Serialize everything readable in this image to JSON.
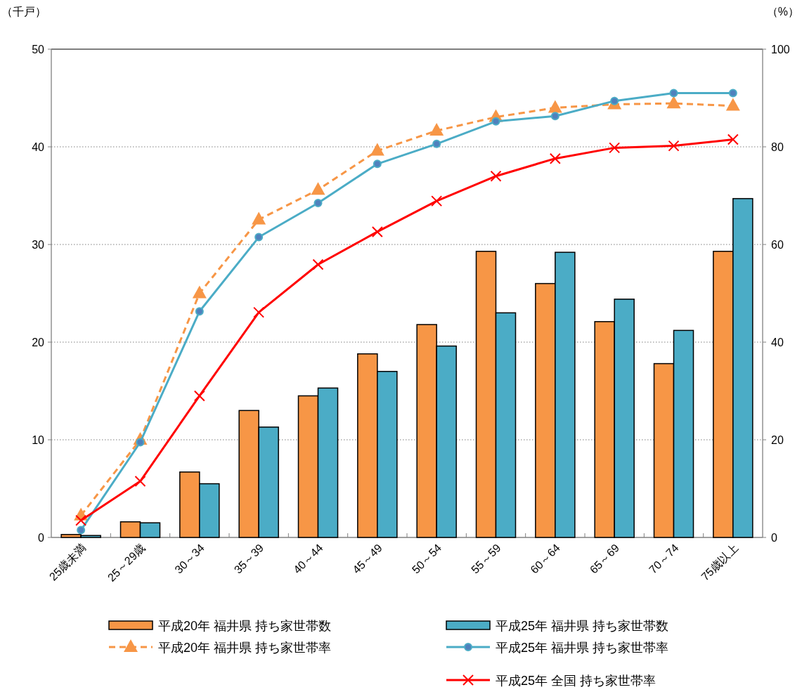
{
  "chart_data": {
    "type": "bar",
    "categories": [
      "25歳未満",
      "25～29歳",
      "30～34",
      "35～39",
      "40～44",
      "45～49",
      "50～54",
      "55～59",
      "60～64",
      "65～69",
      "70～74",
      "75歳以上"
    ],
    "ylabel": "（千戸）",
    "y2label": "（%）",
    "ylim": [
      0,
      50
    ],
    "yticks": [
      0,
      10,
      20,
      30,
      40,
      50
    ],
    "y2lim": [
      0,
      100
    ],
    "y2ticks": [
      0,
      20,
      40,
      60,
      80,
      100
    ],
    "grid": "y",
    "legend": "bottom",
    "series": [
      {
        "name": "平成20年 福井県 持ち家世帯数",
        "color": "#f79646",
        "values": [
          0.3,
          1.6,
          6.7,
          13.0,
          14.5,
          18.8,
          21.8,
          29.3,
          26.0,
          22.1,
          17.8,
          29.3
        ]
      },
      {
        "name": "平成25年 福井県 持ち家世帯数",
        "color": "#4bacc6",
        "values": [
          0.2,
          1.5,
          5.5,
          11.3,
          15.3,
          17.0,
          19.6,
          23.0,
          29.2,
          24.4,
          21.2,
          34.7
        ]
      },
      {
        "name": "平成20年 福井県 持ち家世帯率",
        "type": "line",
        "axis": "y2",
        "color": "#f79646",
        "marker": "triangle",
        "line_style": "dashed",
        "values": [
          4.5,
          20.0,
          50.0,
          65.1,
          71.2,
          79.2,
          83.3,
          86.1,
          88.0,
          88.7,
          88.9,
          88.4
        ]
      },
      {
        "name": "平成25年 福井県 持ち家世帯率",
        "type": "line",
        "axis": "y2",
        "color": "#4bacc6",
        "marker": "circle",
        "line_style": "solid",
        "values": [
          1.5,
          19.5,
          46.3,
          61.5,
          68.5,
          76.5,
          80.6,
          85.2,
          86.3,
          89.4,
          91.0,
          91.0
        ]
      },
      {
        "name": "平成25年  全国  持ち家世帯率",
        "type": "line",
        "axis": "y2",
        "color": "#ff0000",
        "marker": "cross",
        "line_style": "solid",
        "values": [
          3.5,
          11.5,
          29.0,
          46.1,
          55.9,
          62.6,
          68.9,
          74.0,
          77.6,
          79.8,
          80.2,
          81.5
        ]
      }
    ]
  }
}
